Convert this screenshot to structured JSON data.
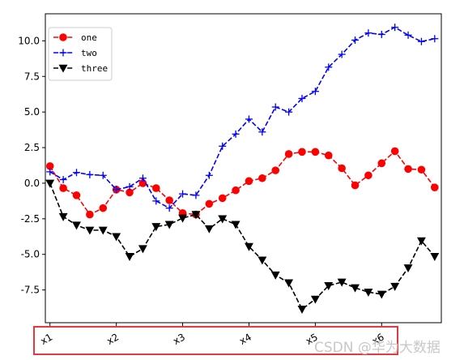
{
  "chart_data": {
    "type": "line",
    "title": "",
    "xlabel": "",
    "ylabel": "",
    "grid": false,
    "legend_position": "top-left",
    "x_tick_labels": [
      "x1",
      "x2",
      "x3",
      "x4",
      "x5",
      "x6"
    ],
    "x_tick_positions": [
      0,
      5,
      10,
      15,
      20,
      25
    ],
    "x_tick_rotation_deg": -30,
    "xlim": [
      -0.35,
      29.5
    ],
    "ylim": [
      -9.8,
      11.9
    ],
    "y_ticks": [
      -7.5,
      -5.0,
      -2.5,
      0.0,
      2.5,
      5.0,
      7.5,
      10.0
    ],
    "x": [
      0,
      1,
      2,
      3,
      4,
      5,
      6,
      7,
      8,
      9,
      10,
      11,
      12,
      13,
      14,
      15,
      16,
      17,
      18,
      19,
      20,
      21,
      22,
      23,
      24,
      25,
      26,
      27,
      28,
      29
    ],
    "series": [
      {
        "name": "one",
        "color": "#ff0000",
        "marker": "circle",
        "line_style": "dashed",
        "values": [
          1.2,
          -0.35,
          -0.85,
          -2.2,
          -1.75,
          -0.45,
          -0.65,
          0.0,
          -0.35,
          -1.2,
          -2.1,
          -2.2,
          -1.45,
          -1.05,
          -0.5,
          0.15,
          0.35,
          0.9,
          2.05,
          2.2,
          2.2,
          1.95,
          1.05,
          -0.15,
          0.55,
          1.4,
          2.25,
          1.0,
          0.95,
          -0.3
        ]
      },
      {
        "name": "two",
        "color": "#0000ff",
        "marker": "plus",
        "line_style": "dashed",
        "values": [
          0.8,
          0.25,
          0.75,
          0.6,
          0.55,
          -0.45,
          -0.25,
          0.35,
          -1.25,
          -1.75,
          -0.75,
          -0.85,
          0.55,
          2.6,
          3.45,
          4.5,
          3.6,
          5.35,
          5.0,
          5.95,
          6.45,
          8.15,
          9.05,
          10.05,
          10.55,
          10.45,
          10.95,
          10.4,
          9.95,
          10.15
        ]
      },
      {
        "name": "three",
        "color": "#000000",
        "marker": "triangle_down",
        "line_style": "dashed",
        "values": [
          0.0,
          -2.35,
          -2.95,
          -3.3,
          -3.3,
          -3.75,
          -5.15,
          -4.6,
          -3.05,
          -2.9,
          -2.45,
          -2.2,
          -3.2,
          -2.5,
          -2.9,
          -4.45,
          -5.4,
          -6.45,
          -7.0,
          -8.85,
          -8.15,
          -7.2,
          -6.95,
          -7.35,
          -7.65,
          -7.8,
          -7.25,
          -5.95,
          -4.05,
          -5.15
        ]
      }
    ]
  },
  "watermark": "CSDN @华为大数据",
  "highlight_color": "#e8383d"
}
